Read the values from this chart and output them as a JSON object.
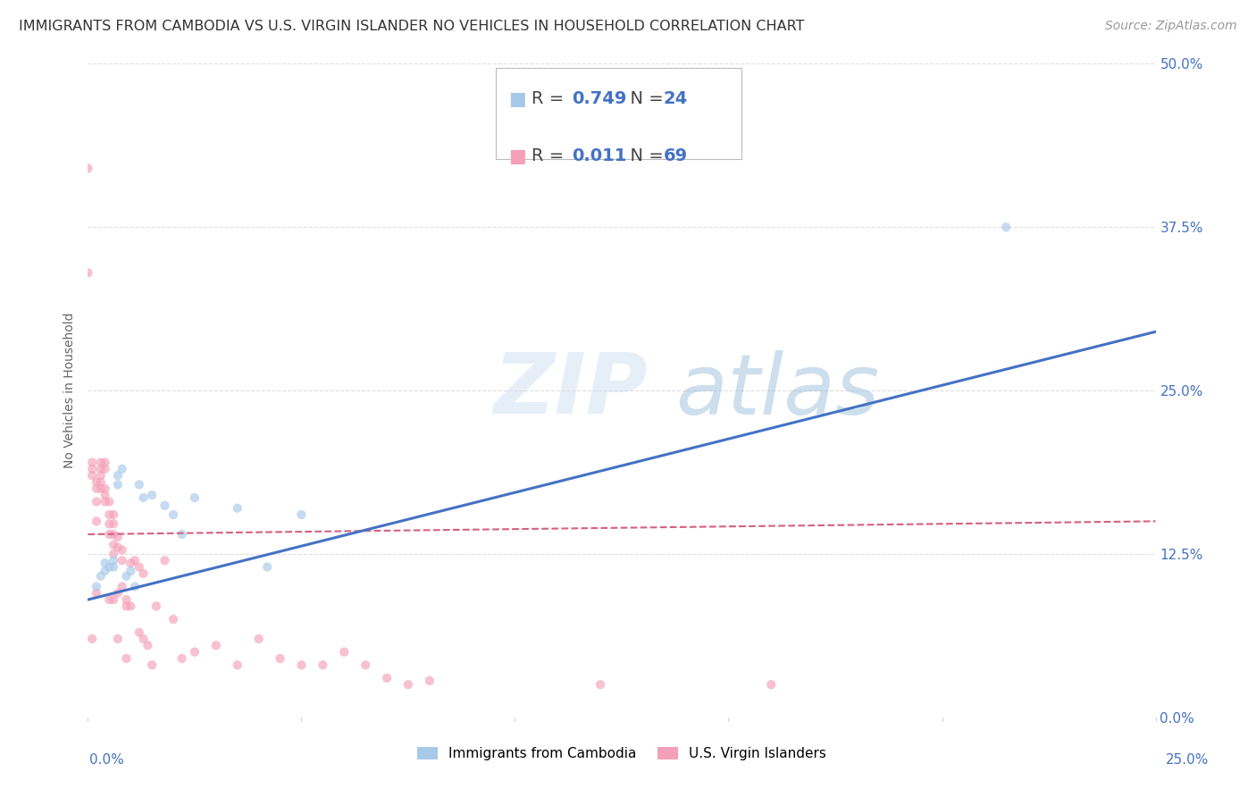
{
  "title": "IMMIGRANTS FROM CAMBODIA VS U.S. VIRGIN ISLANDER NO VEHICLES IN HOUSEHOLD CORRELATION CHART",
  "source": "Source: ZipAtlas.com",
  "xlim": [
    0.0,
    0.25
  ],
  "ylim": [
    0.0,
    0.5
  ],
  "ylabel": "No Vehicles in Household",
  "legend_label1": "Immigrants from Cambodia",
  "legend_label2": "U.S. Virgin Islanders",
  "r1": "0.749",
  "n1": "24",
  "r2": "0.011",
  "n2": "69",
  "color_blue": "#a8c8e8",
  "color_pink": "#f4a0b8",
  "color_blue_text": "#4472c4",
  "line_blue": "#4472c4",
  "line_pink": "#d46080",
  "watermark_zip": "ZIP",
  "watermark_atlas": "atlas",
  "blue_scatter_x": [
    0.002,
    0.003,
    0.004,
    0.004,
    0.005,
    0.006,
    0.006,
    0.007,
    0.007,
    0.008,
    0.009,
    0.01,
    0.011,
    0.012,
    0.013,
    0.015,
    0.018,
    0.02,
    0.022,
    0.025,
    0.035,
    0.042,
    0.05,
    0.215
  ],
  "blue_scatter_y": [
    0.1,
    0.108,
    0.112,
    0.118,
    0.115,
    0.12,
    0.115,
    0.185,
    0.178,
    0.19,
    0.108,
    0.112,
    0.1,
    0.178,
    0.168,
    0.17,
    0.162,
    0.155,
    0.14,
    0.168,
    0.16,
    0.115,
    0.155,
    0.375
  ],
  "pink_scatter_x": [
    0.0,
    0.0,
    0.001,
    0.001,
    0.001,
    0.001,
    0.002,
    0.002,
    0.002,
    0.002,
    0.002,
    0.003,
    0.003,
    0.003,
    0.003,
    0.003,
    0.004,
    0.004,
    0.004,
    0.004,
    0.004,
    0.005,
    0.005,
    0.005,
    0.005,
    0.005,
    0.006,
    0.006,
    0.006,
    0.006,
    0.006,
    0.006,
    0.007,
    0.007,
    0.007,
    0.007,
    0.008,
    0.008,
    0.008,
    0.009,
    0.009,
    0.009,
    0.01,
    0.01,
    0.011,
    0.012,
    0.012,
    0.013,
    0.013,
    0.014,
    0.015,
    0.016,
    0.018,
    0.02,
    0.022,
    0.025,
    0.03,
    0.035,
    0.04,
    0.045,
    0.05,
    0.055,
    0.06,
    0.065,
    0.07,
    0.075,
    0.08,
    0.12,
    0.16
  ],
  "pink_scatter_y": [
    0.42,
    0.34,
    0.195,
    0.19,
    0.185,
    0.06,
    0.165,
    0.175,
    0.18,
    0.15,
    0.095,
    0.195,
    0.19,
    0.185,
    0.18,
    0.175,
    0.195,
    0.19,
    0.175,
    0.17,
    0.165,
    0.165,
    0.155,
    0.148,
    0.14,
    0.09,
    0.155,
    0.148,
    0.14,
    0.132,
    0.125,
    0.09,
    0.138,
    0.13,
    0.095,
    0.06,
    0.128,
    0.12,
    0.1,
    0.09,
    0.085,
    0.045,
    0.118,
    0.085,
    0.12,
    0.115,
    0.065,
    0.11,
    0.06,
    0.055,
    0.04,
    0.085,
    0.12,
    0.075,
    0.045,
    0.05,
    0.055,
    0.04,
    0.06,
    0.045,
    0.04,
    0.04,
    0.05,
    0.04,
    0.03,
    0.025,
    0.028,
    0.025,
    0.025
  ],
  "blue_line_x": [
    0.0,
    0.25
  ],
  "blue_line_y": [
    0.09,
    0.295
  ],
  "pink_line_x": [
    0.0,
    0.25
  ],
  "pink_line_y": [
    0.14,
    0.15
  ],
  "background_color": "#ffffff",
  "grid_color": "#e0e0e0",
  "title_fontsize": 11.5,
  "source_fontsize": 10,
  "axis_label_fontsize": 10,
  "tick_fontsize": 11,
  "legend_fontsize": 14,
  "scatter_size": 55,
  "scatter_alpha": 0.65
}
